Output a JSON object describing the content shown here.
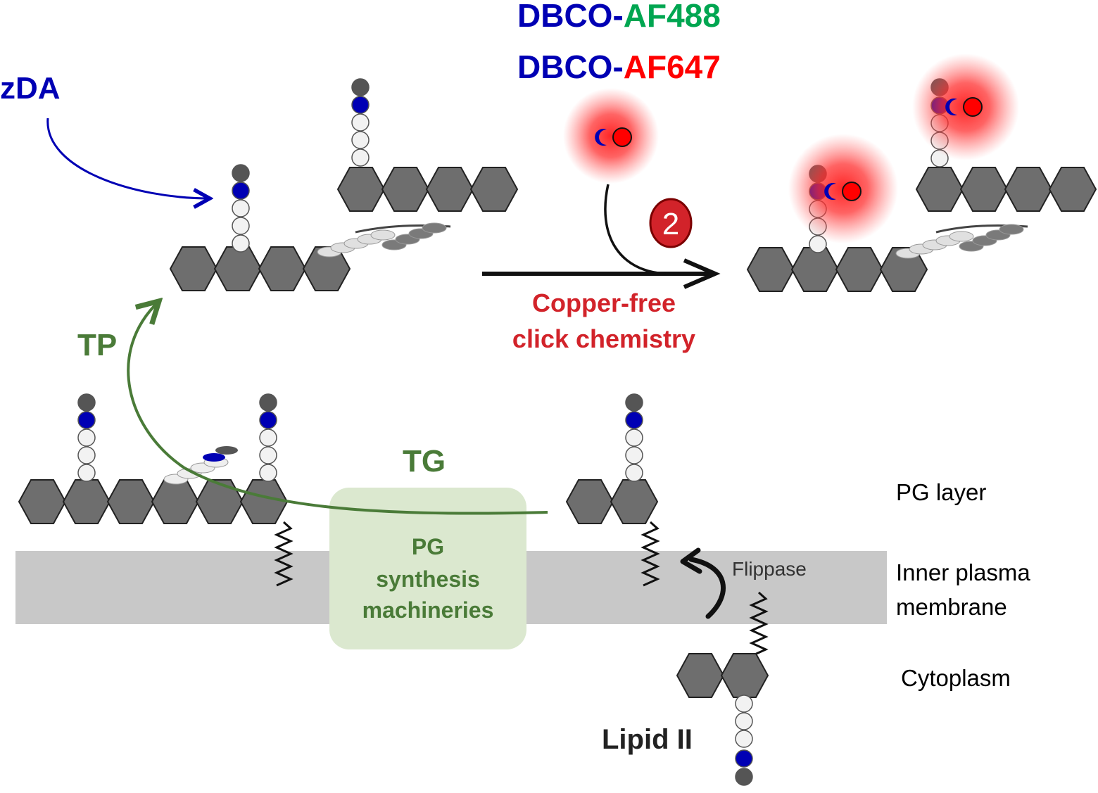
{
  "colors": {
    "blue": "#0000b4",
    "green": "#00a651",
    "red": "#ff0000",
    "process_green": "#4a7b38",
    "click_red": "#d2232a",
    "hexagon": "#6e6e6e",
    "membrane": "#c8c8c8",
    "machinery_box": "#dbe8cf"
  },
  "header": {
    "probe_prefix": "DBCO-",
    "probe1_dye": "AF488",
    "probe2_dye": "AF647"
  },
  "labels": {
    "zda": "zDA",
    "tp": "TP",
    "tg": "TG",
    "step_number": "2",
    "reaction_line1": "Copper-free",
    "reaction_line2": "click chemistry",
    "machinery_line1": "PG",
    "machinery_line2": "synthesis",
    "machinery_line3": "machineries",
    "flippase": "Flippase",
    "lipid2": "Lipid II"
  },
  "legend": {
    "pg_layer": "PG layer",
    "membrane_line1": "Inner plasma",
    "membrane_line2": "membrane",
    "cytoplasm": "Cytoplasm"
  }
}
